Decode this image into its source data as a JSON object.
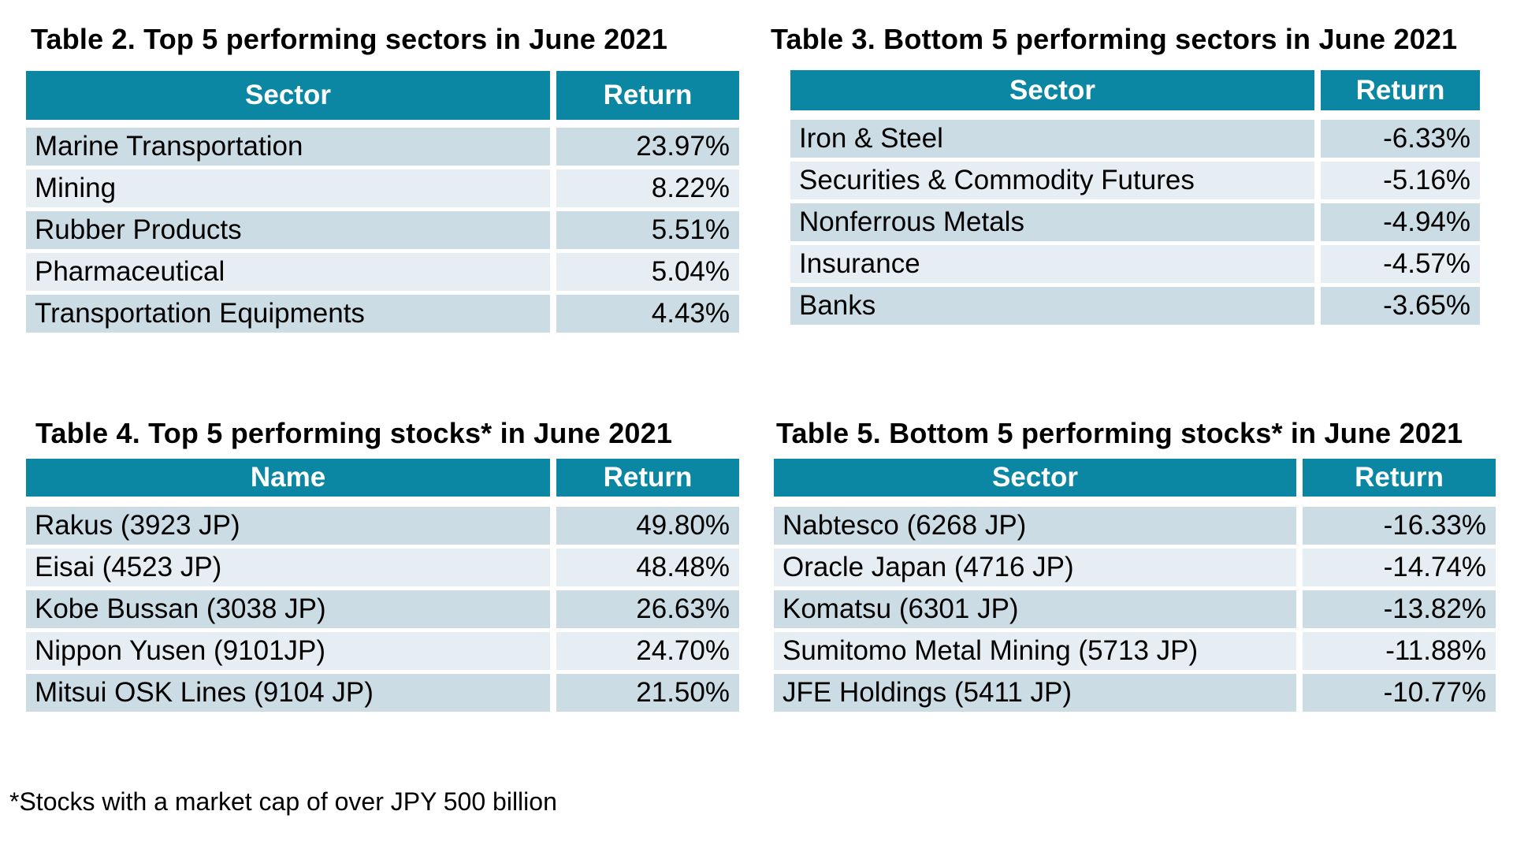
{
  "colors": {
    "header_bg": "#0b87a4",
    "header_text": "#ffffff",
    "row_dark": "#cbdce4",
    "row_light": "#e6eef3",
    "text": "#000000",
    "background": "#ffffff"
  },
  "tables": [
    {
      "title": "Table 2. Top 5 performing sectors in June 2021",
      "name_header": "Sector",
      "return_header": "Return",
      "rows": [
        [
          "Marine Transportation",
          "23.97%"
        ],
        [
          "Mining",
          "8.22%"
        ],
        [
          "Rubber Products",
          "5.51%"
        ],
        [
          "Pharmaceutical",
          "5.04%"
        ],
        [
          "Transportation Equipments",
          "4.43%"
        ]
      ]
    },
    {
      "title": "Table 3. Bottom 5 performing sectors in June 2021",
      "name_header": "Sector",
      "return_header": "Return",
      "rows": [
        [
          "Iron & Steel",
          "-6.33%"
        ],
        [
          "Securities & Commodity Futures",
          "-5.16%"
        ],
        [
          "Nonferrous Metals",
          "-4.94%"
        ],
        [
          "Insurance",
          "-4.57%"
        ],
        [
          "Banks",
          "-3.65%"
        ]
      ]
    },
    {
      "title": "Table 4. Top 5 performing stocks* in June 2021",
      "name_header": "Name",
      "return_header": "Return",
      "rows": [
        [
          "Rakus (3923 JP)",
          "49.80%"
        ],
        [
          "Eisai (4523 JP)",
          "48.48%"
        ],
        [
          "Kobe Bussan (3038 JP)",
          "26.63%"
        ],
        [
          "Nippon Yusen (9101JP)",
          "24.70%"
        ],
        [
          "Mitsui OSK Lines (9104 JP)",
          "21.50%"
        ]
      ]
    },
    {
      "title": "Table 5. Bottom 5 performing stocks* in June 2021",
      "name_header": "Sector",
      "return_header": "Return",
      "rows": [
        [
          "Nabtesco (6268 JP)",
          "-16.33%"
        ],
        [
          "Oracle Japan (4716 JP)",
          "-14.74%"
        ],
        [
          "Komatsu (6301 JP)",
          "-13.82%"
        ],
        [
          "Sumitomo Metal Mining (5713 JP)",
          "-11.88%"
        ],
        [
          "JFE Holdings (5411 JP)",
          "-10.77%"
        ]
      ]
    }
  ],
  "footnote": "*Stocks with a market cap of over JPY 500 billion"
}
